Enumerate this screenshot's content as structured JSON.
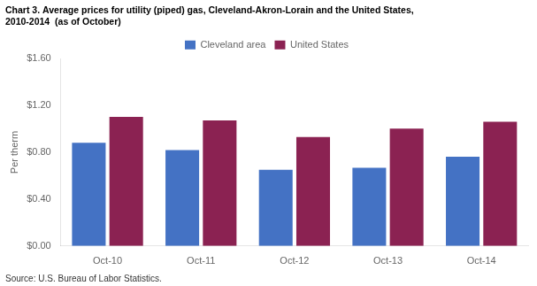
{
  "chart_data": {
    "type": "bar",
    "title": [
      "Chart 3. Average prices for utility (piped) gas, Cleveland-Akron-Lorain and the United States,",
      "2010-2014  (as of October)"
    ],
    "ylabel": "Per therm",
    "source": "Source: U.S. Bureau of Labor Statistics.",
    "categories": [
      "Oct-10",
      "Oct-11",
      "Oct-12",
      "Oct-13",
      "Oct-14"
    ],
    "series": [
      {
        "name": "Cleveland area",
        "color": "#4472C4",
        "values": [
          0.882,
          0.818,
          0.65,
          0.668,
          0.762
        ]
      },
      {
        "name": "United States",
        "color": "#8B2252",
        "values": [
          1.103,
          1.073,
          0.93,
          1.002,
          1.06
        ]
      }
    ],
    "ylim": [
      0.0,
      1.6
    ],
    "yticks": [
      {
        "value": 0.0,
        "label": "$0.00"
      },
      {
        "value": 0.4,
        "label": "$0.40"
      },
      {
        "value": 0.8,
        "label": "$0.80"
      },
      {
        "value": 1.2,
        "label": "$1.20"
      },
      {
        "value": 1.6,
        "label": "$1.60"
      }
    ],
    "grid": false,
    "legend": "top"
  }
}
